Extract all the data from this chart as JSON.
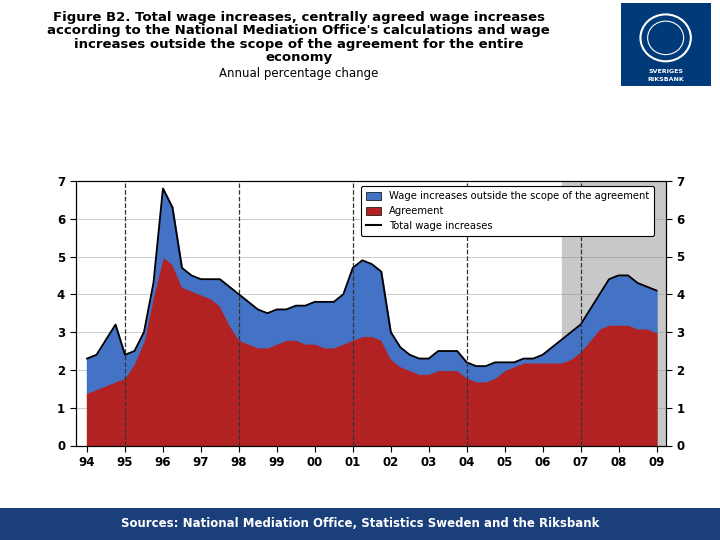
{
  "title_line1": "Figure B2. Total wage increases, centrally agreed wage increases",
  "title_line2": "according to the National Mediation Office's calculations and wage",
  "title_line3": "increases outside the scope of the agreement for the entire",
  "title_line4": "economy",
  "subtitle": "Annual percentage change",
  "source_text": "Sources: National Mediation Office, Statistics Sweden and the Riksbank",
  "years": [
    1994.0,
    1994.25,
    1994.5,
    1994.75,
    1995.0,
    1995.25,
    1995.5,
    1995.75,
    1996.0,
    1996.25,
    1996.5,
    1996.75,
    1997.0,
    1997.25,
    1997.5,
    1997.75,
    1998.0,
    1998.25,
    1998.5,
    1998.75,
    1999.0,
    1999.25,
    1999.5,
    1999.75,
    2000.0,
    2000.25,
    2000.5,
    2000.75,
    2001.0,
    2001.25,
    2001.5,
    2001.75,
    2002.0,
    2002.25,
    2002.5,
    2002.75,
    2003.0,
    2003.25,
    2003.5,
    2003.75,
    2004.0,
    2004.25,
    2004.5,
    2004.75,
    2005.0,
    2005.25,
    2005.5,
    2005.75,
    2006.0,
    2006.25,
    2006.5,
    2006.75,
    2007.0,
    2007.25,
    2007.5,
    2007.75,
    2008.0,
    2008.25,
    2008.5,
    2008.75,
    2009.0
  ],
  "agreement": [
    1.4,
    1.5,
    1.6,
    1.7,
    1.8,
    2.2,
    2.8,
    4.0,
    5.0,
    4.8,
    4.2,
    4.1,
    4.0,
    3.9,
    3.7,
    3.2,
    2.8,
    2.7,
    2.6,
    2.6,
    2.7,
    2.8,
    2.8,
    2.7,
    2.7,
    2.6,
    2.6,
    2.7,
    2.8,
    2.9,
    2.9,
    2.8,
    2.3,
    2.1,
    2.0,
    1.9,
    1.9,
    2.0,
    2.0,
    2.0,
    1.8,
    1.7,
    1.7,
    1.8,
    2.0,
    2.1,
    2.2,
    2.2,
    2.2,
    2.2,
    2.2,
    2.3,
    2.5,
    2.8,
    3.1,
    3.2,
    3.2,
    3.2,
    3.1,
    3.1,
    3.0
  ],
  "wage_outside": [
    0.9,
    0.9,
    1.2,
    1.5,
    0.6,
    0.3,
    0.2,
    0.3,
    1.8,
    1.5,
    0.5,
    0.4,
    0.4,
    0.5,
    0.7,
    1.0,
    1.2,
    1.1,
    1.0,
    0.9,
    0.9,
    0.8,
    0.9,
    1.0,
    1.1,
    1.2,
    1.2,
    1.3,
    1.9,
    2.0,
    1.9,
    1.8,
    0.7,
    0.5,
    0.4,
    0.4,
    0.4,
    0.5,
    0.5,
    0.5,
    0.4,
    0.4,
    0.4,
    0.4,
    0.2,
    0.1,
    0.1,
    0.1,
    0.2,
    0.4,
    0.6,
    0.7,
    0.7,
    0.8,
    0.9,
    1.2,
    1.3,
    1.3,
    1.2,
    1.1,
    1.1
  ],
  "forecast_start": 2006.5,
  "dashed_lines": [
    1995,
    1998,
    2001,
    2004,
    2007
  ],
  "ylim": [
    0,
    7
  ],
  "yticks": [
    0,
    1,
    2,
    3,
    4,
    5,
    6,
    7
  ],
  "xticks": [
    1994,
    1995,
    1996,
    1997,
    1998,
    1999,
    2000,
    2001,
    2002,
    2003,
    2004,
    2005,
    2006,
    2007,
    2008,
    2009
  ],
  "xtick_labels": [
    "94",
    "95",
    "96",
    "97",
    "98",
    "99",
    "00",
    "01",
    "02",
    "03",
    "04",
    "05",
    "06",
    "07",
    "08",
    "09"
  ],
  "color_agreement": "#b22222",
  "color_outside": "#4472c4",
  "color_total_line": "#000000",
  "color_forecast_bg": "#c8c8c8",
  "color_bar_bottom": "#1a3f7a",
  "background_color": "#ffffff"
}
